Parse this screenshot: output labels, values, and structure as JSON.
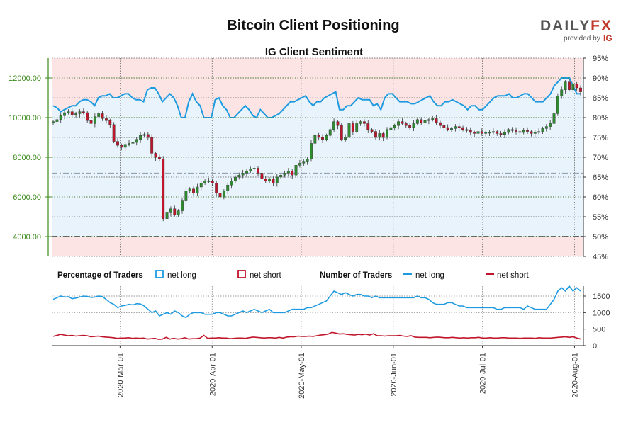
{
  "header": {
    "title": "Bitcoin Client Positioning",
    "subtitle": "IG Client Sentiment"
  },
  "logo": {
    "brand_part1": "DAILY",
    "brand_part2": "FX",
    "provided_by": "provided by",
    "partner": "IG",
    "partner_color": "#c0392b"
  },
  "legend": {
    "pct_heading": "Percentage of Traders",
    "pct_long": "net long",
    "pct_short": "net short",
    "num_heading": "Number of Traders",
    "num_long": "net long",
    "num_short": "net short"
  },
  "colors": {
    "long": "#1e9be0",
    "short": "#c0152a",
    "long_zone": "#e8f3fb",
    "short_zone": "#fce4e4",
    "candle_up": "#2e8b2e",
    "candle_down": "#c0152a",
    "left_axis": "#3a8a1a"
  },
  "chart_data": [
    {
      "type": "candlestick",
      "title": "IG Client Sentiment",
      "left_axis": {
        "label": "",
        "ticks": [
          "4000.00",
          "6000.00",
          "8000.00",
          "10000.00",
          "12000.00"
        ],
        "ylim": [
          3000,
          13000
        ]
      },
      "right_axis": {
        "label": "",
        "ticks": [
          "45%",
          "50%",
          "55%",
          "60%",
          "65%",
          "70%",
          "75%",
          "80%",
          "85%",
          "90%",
          "95%"
        ],
        "ylim": [
          45,
          95
        ]
      },
      "x_ticks": [
        "2020-Mar-01",
        "2020-Apr-01",
        "2020-May-01",
        "2020-Jun-01",
        "2020-Jul-01",
        "2020-Aug-01"
      ],
      "x_start": "2020-02-07",
      "x_end": "2020-08-04",
      "reference_lines": [
        50,
        66
      ],
      "series": [
        {
          "name": "Bitcoin",
          "kind": "ohlc",
          "close": [
            9800,
            9900,
            10100,
            10250,
            10300,
            10150,
            10200,
            10300,
            10250,
            9850,
            9700,
            10050,
            10200,
            9950,
            9850,
            9650,
            8800,
            8600,
            8500,
            8650,
            8700,
            8750,
            8900,
            9100,
            9150,
            9000,
            8200,
            8000,
            7900,
            4900,
            5200,
            5400,
            5100,
            5300,
            5800,
            6300,
            6400,
            6200,
            6500,
            6700,
            6800,
            6800,
            6700,
            6200,
            6000,
            6300,
            6600,
            6800,
            7000,
            7100,
            7200,
            7300,
            7400,
            7450,
            7200,
            6900,
            6800,
            6900,
            6700,
            7000,
            7100,
            7200,
            7300,
            7100,
            7600,
            7700,
            7800,
            7900,
            8700,
            9100,
            9000,
            8900,
            9100,
            9400,
            9800,
            9600,
            8900,
            9000,
            9700,
            9300,
            9700,
            9800,
            9700,
            9400,
            9300,
            9000,
            9200,
            9000,
            9400,
            9500,
            9600,
            9800,
            9700,
            9600,
            9500,
            9700,
            9900,
            9750,
            9850,
            9900,
            9950,
            9750,
            9600,
            9500,
            9400,
            9450,
            9550,
            9500,
            9400,
            9350,
            9250,
            9200,
            9300,
            9200,
            9250,
            9250,
            9300,
            9200,
            9150,
            9250,
            9400,
            9350,
            9300,
            9250,
            9350,
            9300,
            9200,
            9250,
            9300,
            9450,
            9550,
            9700,
            10200,
            11100,
            11400,
            11800,
            11400,
            11700,
            11500,
            11300
          ]
        },
        {
          "name": "net long %",
          "kind": "line",
          "values": [
            83,
            82.5,
            81.5,
            82,
            82.5,
            83,
            83,
            84,
            84.5,
            84.5,
            84,
            83,
            85,
            85.5,
            85.5,
            86,
            85,
            85,
            85.5,
            86,
            86,
            85,
            84.5,
            84.5,
            84,
            87,
            87.5,
            87.5,
            86,
            84,
            85,
            86,
            85,
            83,
            80,
            80,
            84,
            86,
            84,
            83,
            80,
            80,
            80,
            84.5,
            85,
            83,
            82,
            80,
            80,
            81,
            82,
            83,
            82,
            80.5,
            80,
            82,
            81,
            80,
            80,
            80.5,
            81,
            82,
            83,
            84,
            84,
            84.5,
            85,
            85.5,
            84,
            83,
            84,
            84,
            85,
            85.5,
            86,
            86.5,
            82,
            82,
            83,
            83,
            84,
            85,
            84.5,
            84.5,
            84.5,
            83,
            83.5,
            82,
            85,
            86,
            86,
            85,
            84,
            84,
            84,
            83.5,
            83.5,
            84,
            84.5,
            85,
            85.5,
            84,
            83,
            83,
            84,
            84,
            84.5,
            84,
            83.5,
            83,
            82,
            83,
            83,
            82,
            82,
            83,
            84,
            85,
            85.5,
            85.5,
            85.5,
            86,
            85,
            85,
            85.5,
            86,
            86,
            85,
            84,
            84,
            84,
            85,
            86,
            88,
            89,
            90,
            90,
            90,
            88,
            86,
            86
          ]
        }
      ]
    },
    {
      "type": "line",
      "title": "Number of Traders",
      "y_ticks": [
        "0",
        "500",
        "1000",
        "1500"
      ],
      "ylim": [
        0,
        1800
      ],
      "series": [
        {
          "name": "net long",
          "values": [
            1400,
            1450,
            1500,
            1470,
            1480,
            1420,
            1440,
            1470,
            1500,
            1490,
            1460,
            1470,
            1500,
            1480,
            1400,
            1300,
            1250,
            1150,
            1200,
            1220,
            1250,
            1230,
            1270,
            1260,
            1200,
            1100,
            1000,
            1050,
            900,
            950,
            1000,
            950,
            1050,
            1000,
            900,
            850,
            950,
            1000,
            1000,
            1000,
            950,
            950,
            950,
            1000,
            1000,
            950,
            900,
            900,
            950,
            1000,
            1050,
            1000,
            1050,
            1100,
            1050,
            1000,
            1050,
            1100,
            1000,
            1000,
            1000,
            1000,
            1050,
            1100,
            1100,
            1100,
            1100,
            1150,
            1150,
            1200,
            1250,
            1300,
            1350,
            1500,
            1650,
            1600,
            1550,
            1600,
            1550,
            1500,
            1550,
            1550,
            1500,
            1500,
            1450,
            1500,
            1450,
            1450,
            1450,
            1450,
            1450,
            1450,
            1450,
            1450,
            1450,
            1450,
            1500,
            1450,
            1450,
            1400,
            1300,
            1250,
            1250,
            1250,
            1300,
            1300,
            1250,
            1200,
            1200,
            1150,
            1150,
            1150,
            1150,
            1150,
            1150,
            1150,
            1150,
            1100,
            1100,
            1150,
            1150,
            1150,
            1150,
            1150,
            1100,
            1200,
            1150,
            1100,
            1100,
            1100,
            1100,
            1250,
            1400,
            1650,
            1750,
            1650,
            1800,
            1650,
            1750,
            1650
          ]
        },
        {
          "name": "net short",
          "values": [
            280,
            310,
            340,
            320,
            300,
            310,
            290,
            300,
            310,
            300,
            270,
            280,
            290,
            270,
            260,
            250,
            240,
            220,
            230,
            230,
            240,
            220,
            230,
            220,
            230,
            200,
            210,
            220,
            190,
            200,
            250,
            200,
            220,
            200,
            210,
            240,
            200,
            210,
            210,
            230,
            310,
            220,
            230,
            230,
            240,
            230,
            230,
            210,
            220,
            230,
            230,
            220,
            240,
            260,
            250,
            240,
            230,
            240,
            240,
            230,
            250,
            230,
            260,
            270,
            270,
            290,
            280,
            280,
            290,
            280,
            300,
            320,
            330,
            350,
            400,
            380,
            350,
            360,
            340,
            330,
            320,
            340,
            330,
            350,
            320,
            360,
            300,
            300,
            290,
            300,
            300,
            300,
            310,
            290,
            280,
            300,
            260,
            250,
            250,
            250,
            240,
            250,
            260,
            250,
            240,
            240,
            250,
            240,
            230,
            240,
            230,
            240,
            240,
            250,
            230,
            230,
            240,
            230,
            230,
            240,
            240,
            230,
            230,
            230,
            220,
            230,
            230,
            230,
            220,
            240,
            230,
            230,
            230,
            240,
            250,
            260,
            270,
            250,
            270,
            230,
            200
          ]
        }
      ]
    }
  ]
}
